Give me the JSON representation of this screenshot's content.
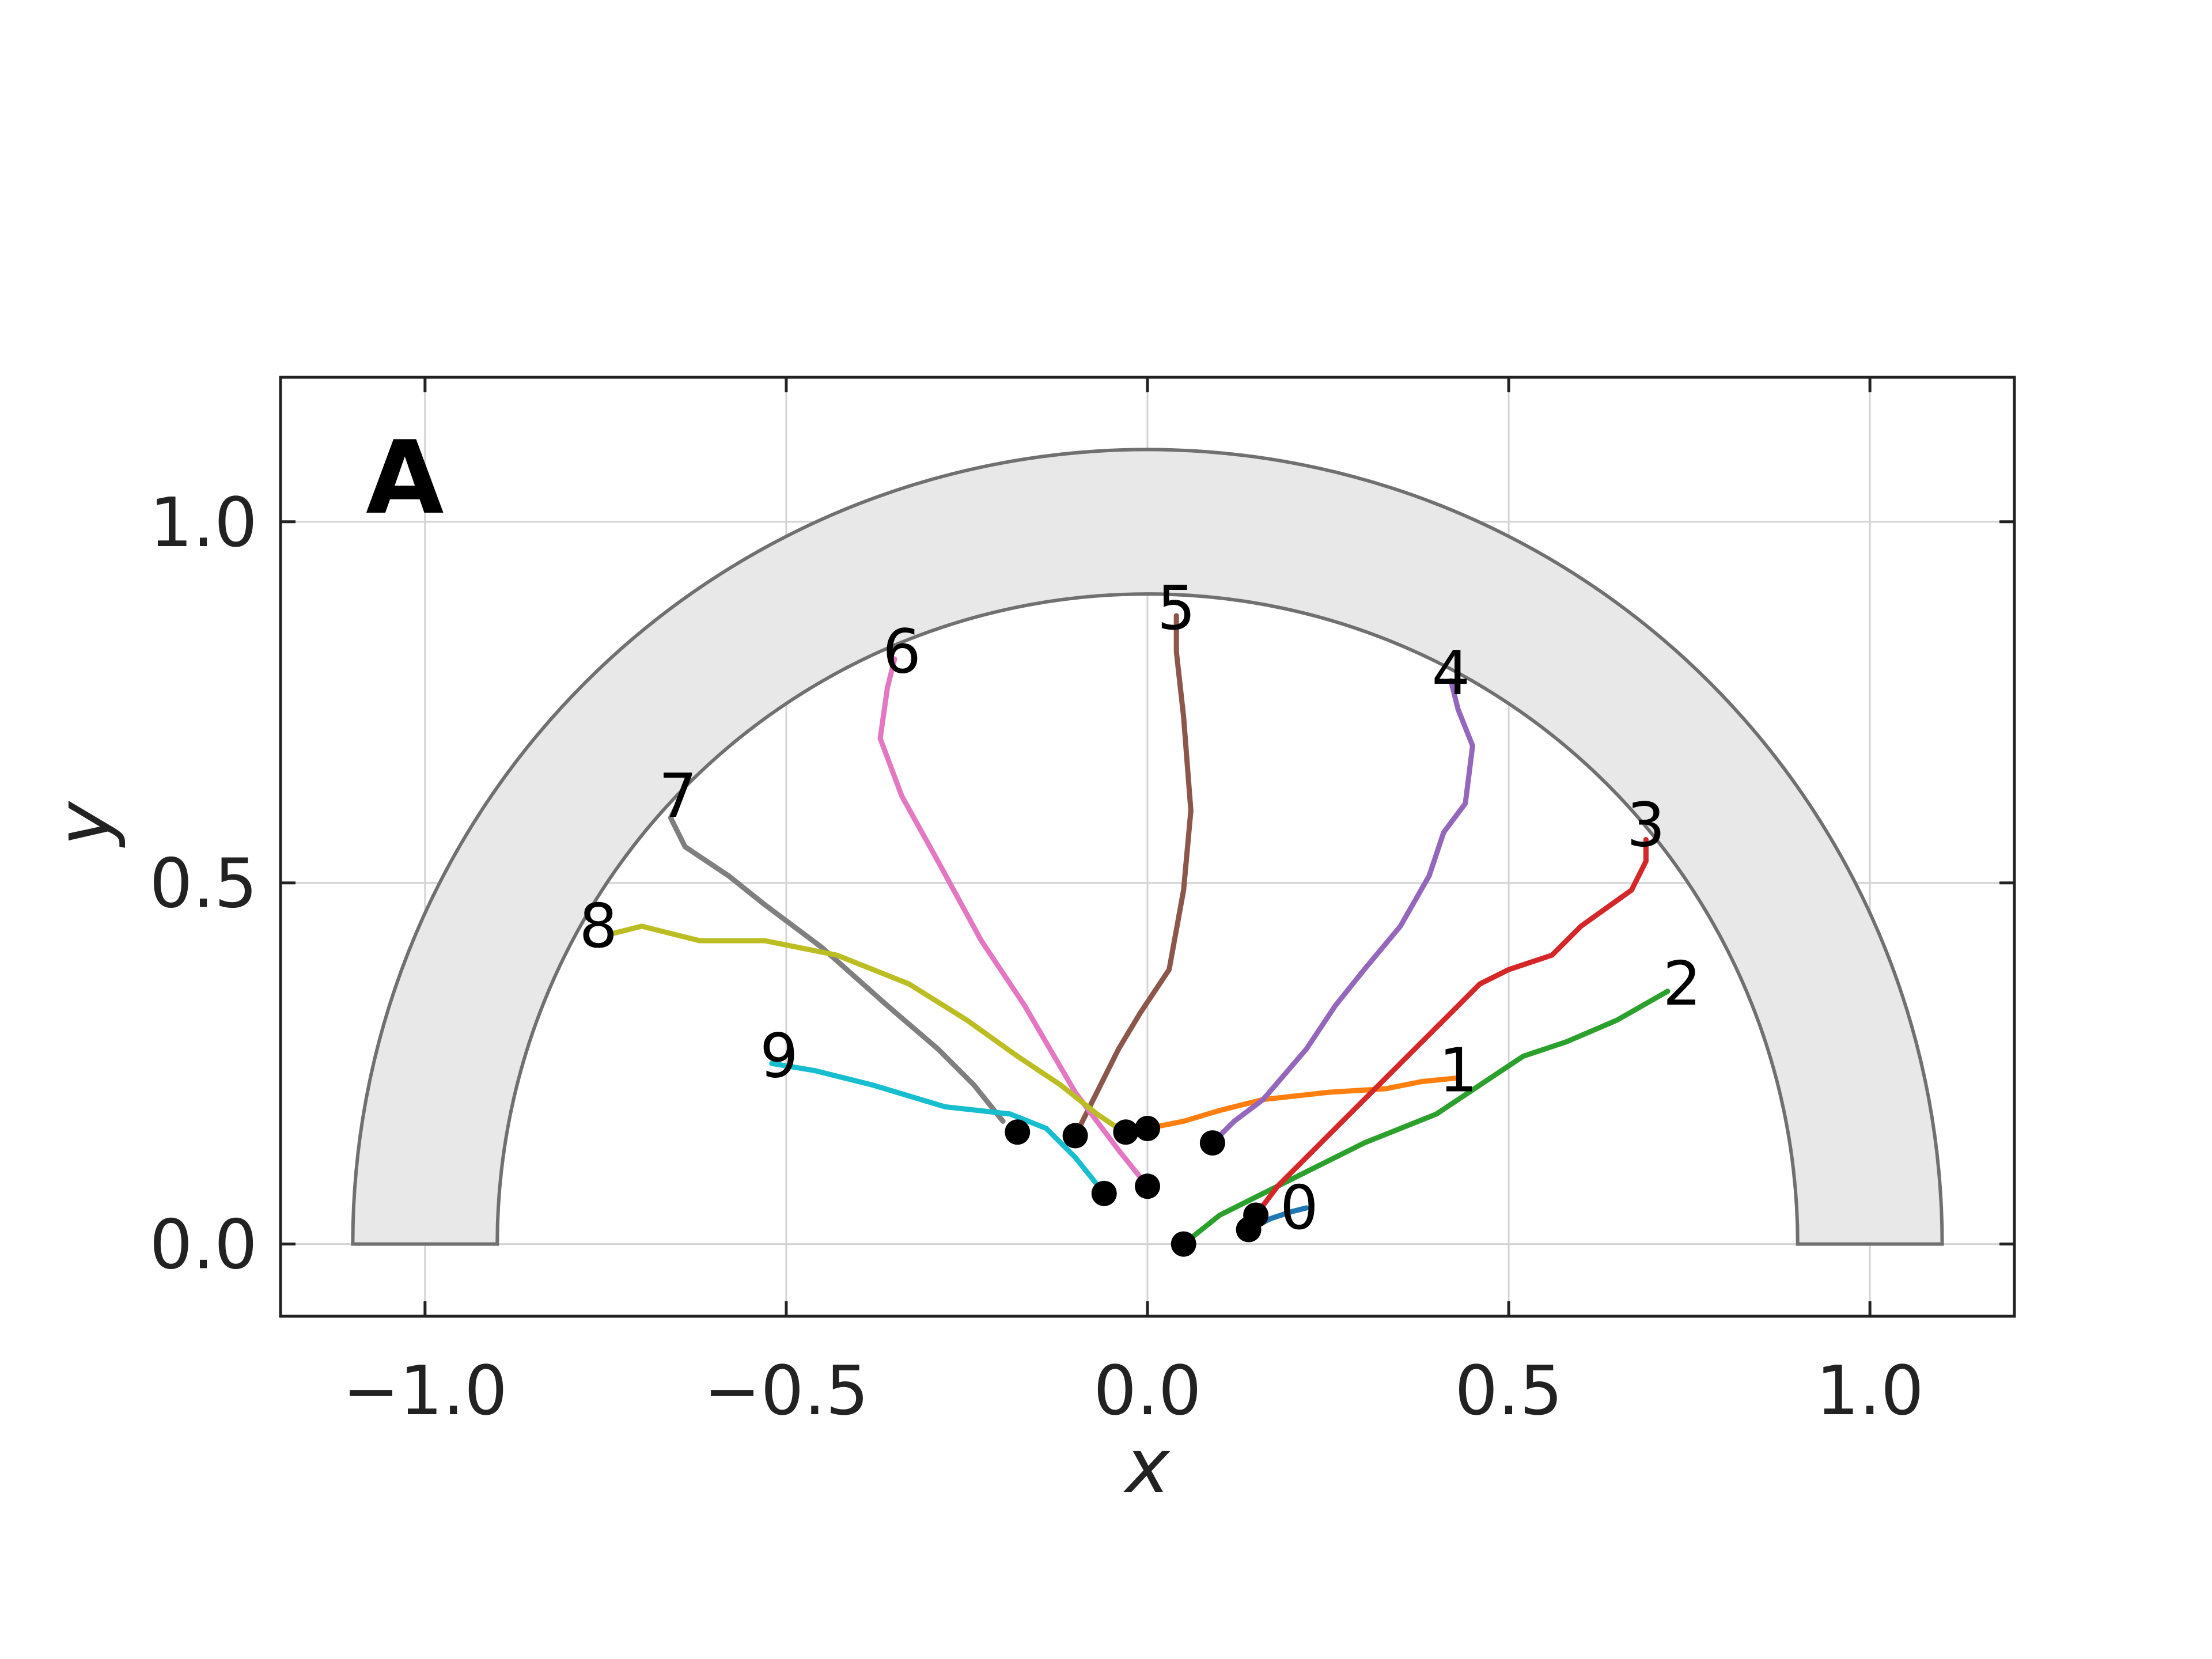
{
  "chart_data": {
    "type": "line",
    "panel_label": "A",
    "xlabel": "x",
    "ylabel": "y",
    "xlim": [
      -1.2,
      1.2
    ],
    "ylim": [
      -0.1,
      1.2
    ],
    "xticks": [
      -1.0,
      -0.5,
      0.0,
      0.5,
      1.0
    ],
    "xtick_labels": [
      "−1.0",
      "−0.5",
      "0.0",
      "0.5",
      "1.0"
    ],
    "yticks": [
      0.0,
      0.5,
      1.0
    ],
    "ytick_labels": [
      "0.0",
      "0.5",
      "1.0"
    ],
    "grid": true,
    "annulus": {
      "inner_radius": 0.9,
      "outer_radius": 1.1,
      "fill": "#e8e8e8",
      "edge": "#707070"
    },
    "series": [
      {
        "label": "0",
        "color": "#1f77b4",
        "points": [
          [
            0.14,
            0.02
          ],
          [
            0.17,
            0.035
          ],
          [
            0.2,
            0.045
          ],
          [
            0.22,
            0.05
          ]
        ],
        "label_pos": [
          0.21,
          0.05
        ]
      },
      {
        "label": "1",
        "color": "#ff7f0e",
        "points": [
          [
            0.0,
            0.16
          ],
          [
            0.05,
            0.17
          ],
          [
            0.1,
            0.185
          ],
          [
            0.16,
            0.2
          ],
          [
            0.25,
            0.21
          ],
          [
            0.33,
            0.215
          ],
          [
            0.38,
            0.225
          ],
          [
            0.43,
            0.23
          ]
        ],
        "label_pos": [
          0.43,
          0.24
        ]
      },
      {
        "label": "2",
        "color": "#2ca02c",
        "points": [
          [
            0.05,
            0.0
          ],
          [
            0.1,
            0.04
          ],
          [
            0.16,
            0.07
          ],
          [
            0.22,
            0.1
          ],
          [
            0.3,
            0.14
          ],
          [
            0.4,
            0.18
          ],
          [
            0.46,
            0.22
          ],
          [
            0.52,
            0.26
          ],
          [
            0.58,
            0.28
          ],
          [
            0.65,
            0.31
          ],
          [
            0.72,
            0.35
          ]
        ],
        "label_pos": [
          0.74,
          0.36
        ]
      },
      {
        "label": "3",
        "color": "#d62728",
        "points": [
          [
            0.15,
            0.04
          ],
          [
            0.18,
            0.08
          ],
          [
            0.24,
            0.14
          ],
          [
            0.31,
            0.21
          ],
          [
            0.38,
            0.28
          ],
          [
            0.42,
            0.32
          ],
          [
            0.46,
            0.36
          ],
          [
            0.5,
            0.38
          ],
          [
            0.56,
            0.4
          ],
          [
            0.6,
            0.44
          ],
          [
            0.67,
            0.49
          ],
          [
            0.69,
            0.53
          ],
          [
            0.69,
            0.56
          ]
        ],
        "label_pos": [
          0.69,
          0.58
        ]
      },
      {
        "label": "4",
        "color": "#9467bd",
        "points": [
          [
            0.09,
            0.14
          ],
          [
            0.12,
            0.17
          ],
          [
            0.16,
            0.2
          ],
          [
            0.22,
            0.27
          ],
          [
            0.26,
            0.33
          ],
          [
            0.3,
            0.38
          ],
          [
            0.35,
            0.44
          ],
          [
            0.39,
            0.51
          ],
          [
            0.41,
            0.57
          ],
          [
            0.44,
            0.61
          ],
          [
            0.45,
            0.69
          ],
          [
            0.43,
            0.74
          ],
          [
            0.42,
            0.78
          ]
        ],
        "label_pos": [
          0.42,
          0.79
        ]
      },
      {
        "label": "5",
        "color": "#8c564b",
        "points": [
          [
            -0.1,
            0.15
          ],
          [
            -0.07,
            0.21
          ],
          [
            -0.04,
            0.27
          ],
          [
            -0.01,
            0.32
          ],
          [
            0.03,
            0.38
          ],
          [
            0.05,
            0.49
          ],
          [
            0.06,
            0.6
          ],
          [
            0.05,
            0.73
          ],
          [
            0.04,
            0.82
          ],
          [
            0.04,
            0.87
          ]
        ],
        "label_pos": [
          0.04,
          0.88
        ]
      },
      {
        "label": "6",
        "color": "#e377c2",
        "points": [
          [
            0.0,
            0.08
          ],
          [
            -0.04,
            0.13
          ],
          [
            -0.1,
            0.21
          ],
          [
            -0.17,
            0.33
          ],
          [
            -0.23,
            0.42
          ],
          [
            -0.29,
            0.53
          ],
          [
            -0.34,
            0.62
          ],
          [
            -0.37,
            0.7
          ],
          [
            -0.36,
            0.77
          ],
          [
            -0.35,
            0.81
          ]
        ],
        "label_pos": [
          -0.34,
          0.82
        ]
      },
      {
        "label": "7",
        "color": "#7f7f7f",
        "points": [
          [
            -0.2,
            0.17
          ],
          [
            -0.24,
            0.22
          ],
          [
            -0.29,
            0.27
          ],
          [
            -0.36,
            0.33
          ],
          [
            -0.45,
            0.41
          ],
          [
            -0.53,
            0.47
          ],
          [
            -0.58,
            0.51
          ],
          [
            -0.64,
            0.55
          ],
          [
            -0.66,
            0.59
          ],
          [
            -0.65,
            0.61
          ]
        ],
        "label_pos": [
          -0.65,
          0.62
        ]
      },
      {
        "label": "8",
        "color": "#bcbd22",
        "points": [
          [
            -0.04,
            0.16
          ],
          [
            -0.07,
            0.18
          ],
          [
            -0.12,
            0.22
          ],
          [
            -0.18,
            0.26
          ],
          [
            -0.25,
            0.31
          ],
          [
            -0.33,
            0.36
          ],
          [
            -0.43,
            0.4
          ],
          [
            -0.53,
            0.42
          ],
          [
            -0.62,
            0.42
          ],
          [
            -0.7,
            0.44
          ],
          [
            -0.74,
            0.43
          ]
        ],
        "label_pos": [
          -0.76,
          0.44
        ]
      },
      {
        "label": "9",
        "color": "#17becf",
        "points": [
          [
            -0.06,
            0.07
          ],
          [
            -0.1,
            0.12
          ],
          [
            -0.14,
            0.16
          ],
          [
            -0.19,
            0.18
          ],
          [
            -0.28,
            0.19
          ],
          [
            -0.38,
            0.22
          ],
          [
            -0.46,
            0.24
          ],
          [
            -0.52,
            0.25
          ]
        ],
        "label_pos": [
          -0.51,
          0.26
        ]
      }
    ],
    "start_points": [
      [
        0.14,
        0.02
      ],
      [
        0.0,
        0.16
      ],
      [
        0.05,
        0.0
      ],
      [
        0.15,
        0.04
      ],
      [
        0.09,
        0.14
      ],
      [
        -0.1,
        0.15
      ],
      [
        0.0,
        0.08
      ],
      [
        -0.18,
        0.155
      ],
      [
        -0.03,
        0.155
      ],
      [
        -0.06,
        0.07
      ]
    ]
  }
}
